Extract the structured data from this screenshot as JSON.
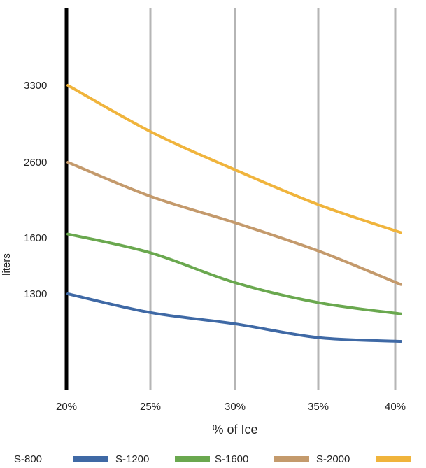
{
  "chart_data": {
    "type": "line",
    "title": "",
    "xlabel": "% of Ice",
    "ylabel": "liters",
    "x": [
      "20%",
      "25%",
      "30%",
      "35%",
      "40%"
    ],
    "yticks": [
      "1300",
      "1600",
      "2600",
      "3300"
    ],
    "grid": "vertical",
    "legend_position": "bottom",
    "series": [
      {
        "name": "S-800",
        "color": "#3f69a5",
        "values": [
          1300,
          1150,
          1060,
          950,
          920
        ]
      },
      {
        "name": "S-1200",
        "color": "#6aa84f",
        "values": [
          1650,
          1520,
          1360,
          1230,
          1140
        ]
      },
      {
        "name": "S-1600",
        "color": "#c49a6c",
        "values": [
          2600,
          2150,
          1800,
          1530,
          1350
        ]
      },
      {
        "name": "S-2000",
        "color": "#f0b43c",
        "values": [
          3300,
          2880,
          2500,
          2040,
          1670
        ]
      }
    ]
  }
}
